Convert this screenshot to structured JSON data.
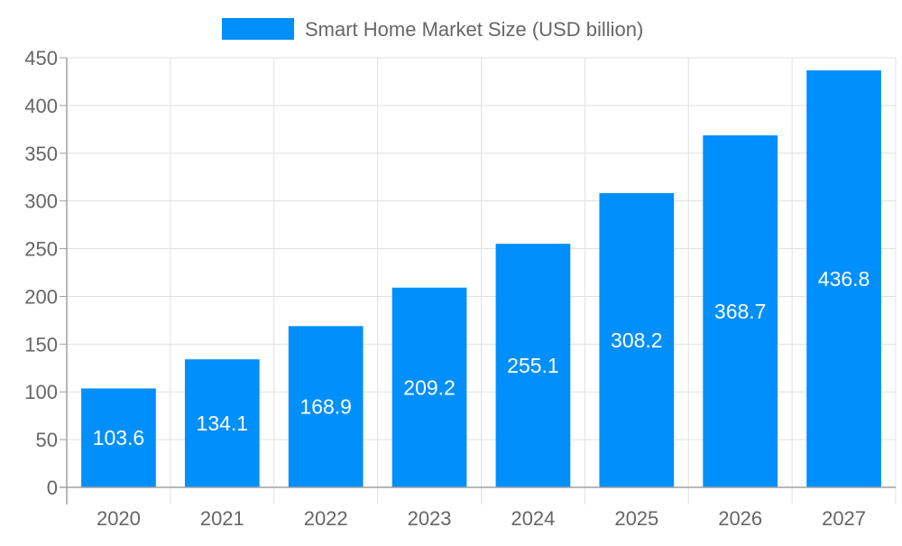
{
  "chart_data": {
    "type": "bar",
    "title": "",
    "xlabel": "",
    "ylabel": "",
    "categories": [
      "2020",
      "2021",
      "2022",
      "2023",
      "2024",
      "2025",
      "2026",
      "2027"
    ],
    "series": [
      {
        "name": "Smart Home Market Size (USD billion)",
        "values": [
          103.6,
          134.1,
          168.9,
          209.2,
          255.1,
          308.2,
          368.7,
          436.8
        ]
      }
    ],
    "data_labels": [
      "103.6",
      "134.1",
      "168.9",
      "209.2",
      "255.1",
      "308.2",
      "368.7",
      "436.8"
    ],
    "ylim": [
      0,
      450
    ],
    "yticks": [
      0,
      50,
      100,
      150,
      200,
      250,
      300,
      350,
      400,
      450
    ],
    "grid": true,
    "legend_position": "top",
    "colors": {
      "bar": "#008ffb",
      "grid": "#e0e0e0",
      "axis": "#a0a0a0",
      "text": "#666666",
      "label": "#ffffff"
    }
  }
}
